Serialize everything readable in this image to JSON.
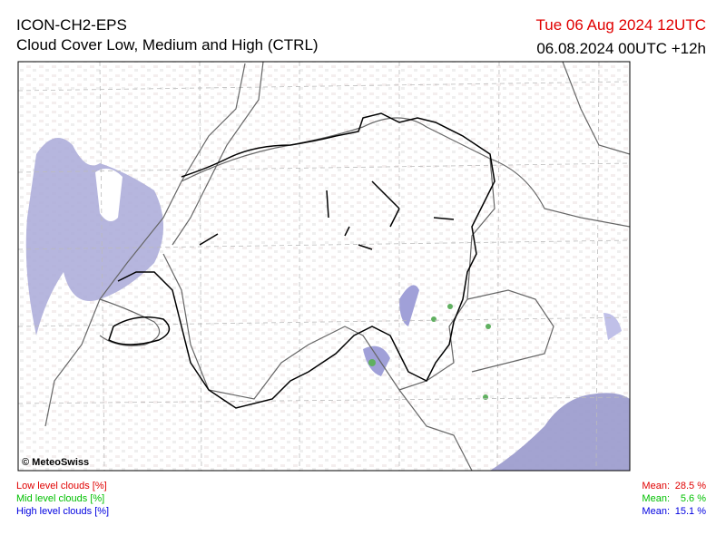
{
  "header": {
    "title": "ICON-CH2-EPS",
    "subtitle": "Cloud Cover Low, Medium and High (CTRL)",
    "valid_time": "Tue 06 Aug 2024 12UTC",
    "run": "06.08.2024 00UTC +12h"
  },
  "map": {
    "credit": "© MeteoSwiss"
  },
  "legend": [
    {
      "label": "Low level clouds [%]",
      "mean_label": "Mean:",
      "mean": "28.5 %",
      "color": "#e00000"
    },
    {
      "label": "Mid level clouds [%]",
      "mean_label": "Mean:",
      "mean": "5.6 %",
      "color": "#00c000"
    },
    {
      "label": "High level clouds [%]",
      "mean_label": "Mean:",
      "mean": "15.1 %",
      "color": "#0000e0"
    }
  ]
}
